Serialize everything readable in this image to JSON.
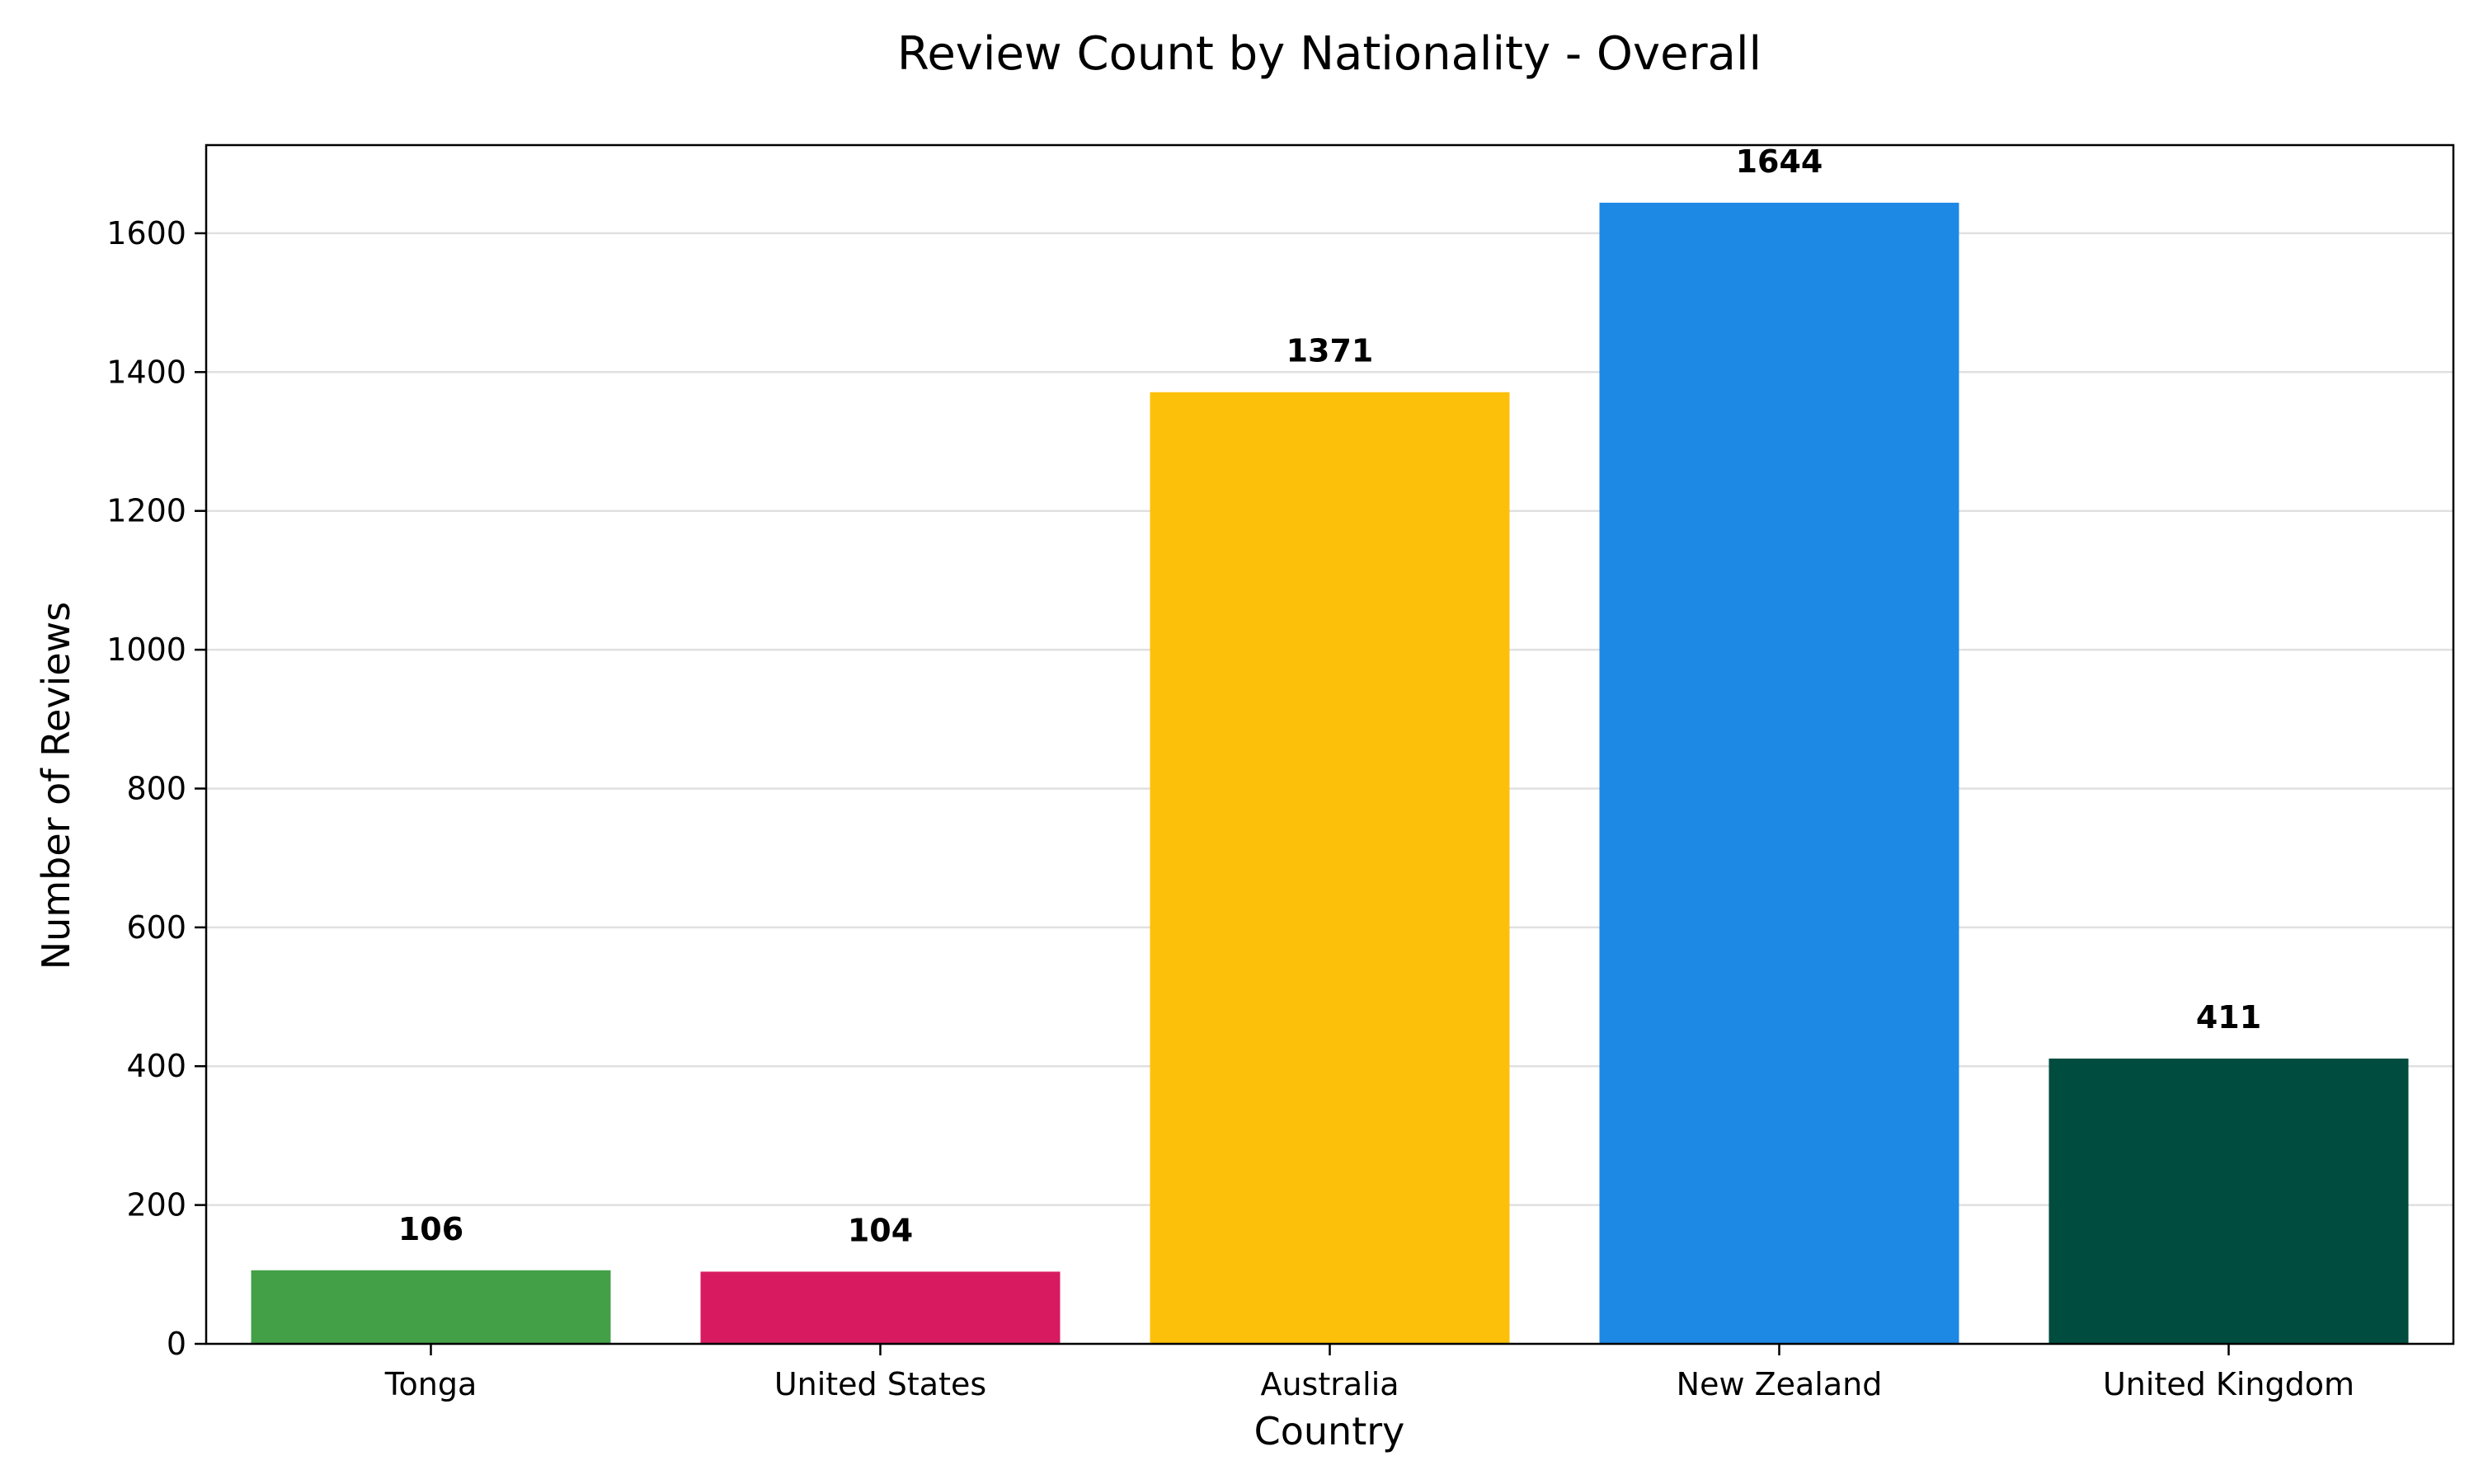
{
  "chart_data": {
    "type": "bar",
    "title": "Review Count by Nationality - Overall",
    "xlabel": "Country",
    "ylabel": "Number of Reviews",
    "categories": [
      "Tonga",
      "United States",
      "Australia",
      "New Zealand",
      "United Kingdom"
    ],
    "values": [
      106,
      104,
      1371,
      1644,
      411
    ],
    "colors": [
      "#43a047",
      "#d81b60",
      "#fdc00a",
      "#1e88e5",
      "#004d40"
    ],
    "ylim": [
      0,
      1727
    ],
    "yticks": [
      0,
      200,
      400,
      600,
      800,
      1000,
      1200,
      1400,
      1600
    ],
    "grid": "y",
    "legend": "none"
  }
}
